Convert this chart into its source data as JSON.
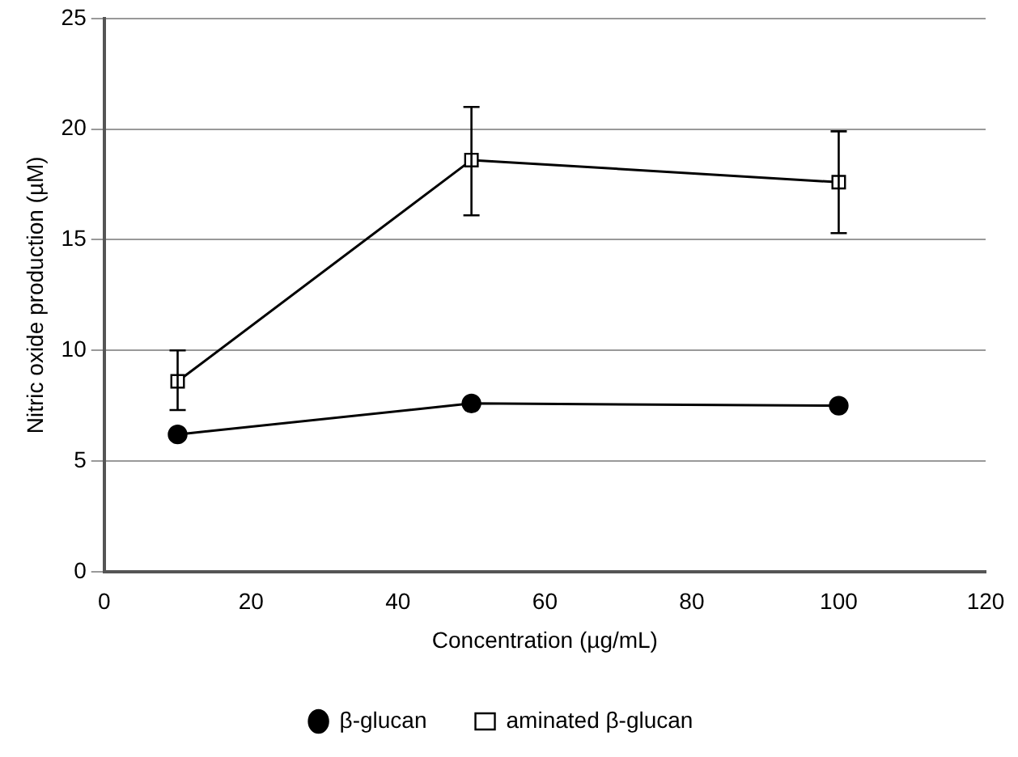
{
  "chart_data": {
    "type": "line",
    "xlabel": "Concentration (µg/mL)",
    "ylabel": "Nitric oxide production (µM)",
    "x": [
      10,
      50,
      100
    ],
    "series": [
      {
        "name": "β-glucan",
        "color": "#000000",
        "marker": "circle",
        "values": [
          6.2,
          7.6,
          7.5
        ]
      },
      {
        "name": "aminated β-glucan",
        "color": "#000000",
        "marker": "square",
        "values": [
          8.6,
          18.6,
          17.6
        ],
        "errors": [
          [
            7.3,
            10.0
          ],
          [
            16.1,
            21.0
          ],
          [
            15.3,
            19.9
          ]
        ]
      }
    ],
    "xlim": [
      0,
      120
    ],
    "xticks": [
      0,
      20,
      40,
      60,
      80,
      100,
      120
    ],
    "ylim": [
      0,
      25
    ],
    "yticks": [
      0,
      5,
      10,
      15,
      20,
      25
    ],
    "grid": "y",
    "legend": "bottom"
  }
}
